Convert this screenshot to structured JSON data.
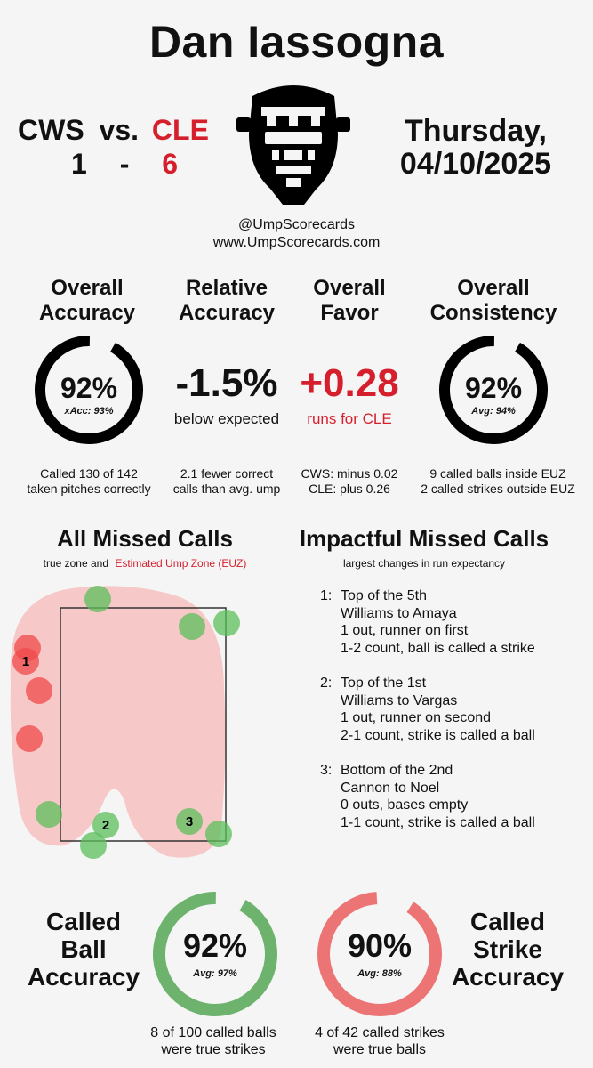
{
  "header": {
    "umpire_name": "Dan Iassogna",
    "away_team": "CWS",
    "vs": "vs.",
    "home_team": "CLE",
    "away_score": "1",
    "dash": "-",
    "home_score": "6",
    "date_line1": "Thursday,",
    "date_line2": "04/10/2025",
    "handle": "@UmpScorecards",
    "website": "www.UmpScorecards.com"
  },
  "metrics": {
    "overall_accuracy": {
      "title_line1": "Overall",
      "title_line2": "Accuracy",
      "value": "92%",
      "sub": "xAcc: 93%",
      "percent": 0.92,
      "desc_line1": "Called 130 of 142",
      "desc_line2": "taken pitches correctly"
    },
    "relative_accuracy": {
      "title_line1": "Relative",
      "title_line2": "Accuracy",
      "value": "-1.5%",
      "sub": "below expected",
      "desc_line1": "2.1 fewer correct",
      "desc_line2": "calls than avg. ump"
    },
    "overall_favor": {
      "title_line1": "Overall",
      "title_line2": "Favor",
      "value": "+0.28",
      "sub": "runs for CLE",
      "desc_line1": "CWS: minus 0.02",
      "desc_line2": "CLE: plus 0.26"
    },
    "overall_consistency": {
      "title_line1": "Overall",
      "title_line2": "Consistency",
      "value": "92%",
      "sub": "Avg: 94%",
      "percent": 0.92,
      "desc_line1": "9 called balls inside EUZ",
      "desc_line2": "2 called strikes outside EUZ"
    }
  },
  "missed_calls": {
    "title": "All Missed Calls",
    "sub_prefix": "true zone and",
    "sub_highlight": "Estimated Ump Zone (EUZ)",
    "labels": [
      "1",
      "2",
      "3"
    ]
  },
  "impactful": {
    "title": "Impactful Missed Calls",
    "sub": "largest changes in run expectancy",
    "items": [
      {
        "num": "1:",
        "inning": "Top of the 5th",
        "matchup": "Williams to Amaya",
        "situation": "1 out, runner on first",
        "call": "1-2 count, ball is called a strike"
      },
      {
        "num": "2:",
        "inning": "Top of the 1st",
        "matchup": "Williams to Vargas",
        "situation": "1 out, runner on second",
        "call": "2-1 count, strike is called a ball"
      },
      {
        "num": "3:",
        "inning": "Bottom of the 2nd",
        "matchup": "Cannon to Noel",
        "situation": "0 outs, bases empty",
        "call": "1-1 count, strike is called a ball"
      }
    ]
  },
  "called_ball": {
    "title_line1": "Called",
    "title_line2": "Ball",
    "title_line3": "Accuracy",
    "value": "92%",
    "sub": "Avg: 97%",
    "percent": 0.92,
    "desc_line1": "8 of 100 called balls",
    "desc_line2": "were true strikes"
  },
  "called_strike": {
    "title_line1": "Called",
    "title_line2": "Strike",
    "title_line3": "Accuracy",
    "value": "90%",
    "sub": "Avg: 88%",
    "percent": 0.9,
    "desc_line1": "4 of 42 called strikes",
    "desc_line2": "were true balls"
  },
  "colors": {
    "accent_red": "#d61f2c",
    "ring_black": "#000000",
    "ring_green": "#6db36d",
    "ring_red": "#ec7474",
    "euz_pink": "#f7c8c8",
    "missed_ball_green": "#5cbf5c",
    "missed_strike_red": "#f04a4a"
  },
  "icons": {
    "mask": "umpire-mask-icon"
  }
}
